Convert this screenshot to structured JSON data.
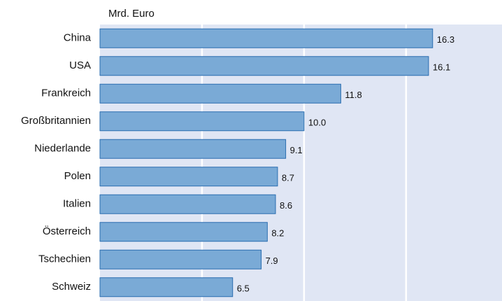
{
  "chart_data": {
    "type": "hbar",
    "unit_label": "Mrd. Euro",
    "categories": [
      "China",
      "USA",
      "Frankreich",
      "Großbritannien",
      "Niederlande",
      "Polen",
      "Italien",
      "Österreich",
      "Tschechien",
      "Schweiz"
    ],
    "values": [
      16.3,
      16.1,
      11.8,
      10.0,
      9.1,
      8.7,
      8.6,
      8.2,
      7.9,
      6.5
    ],
    "value_labels": [
      "16.3",
      "16.1",
      "11.8",
      "10.0",
      "9.1",
      "8.7",
      "8.6",
      "8.2",
      "7.9",
      "6.5"
    ],
    "color": "#7aaad6",
    "edge_color": "#2a6db0",
    "background": "#e0e6f4",
    "xlim": [
      0,
      19.7
    ],
    "grid_lines": [
      5,
      10,
      15
    ],
    "grid": true
  }
}
